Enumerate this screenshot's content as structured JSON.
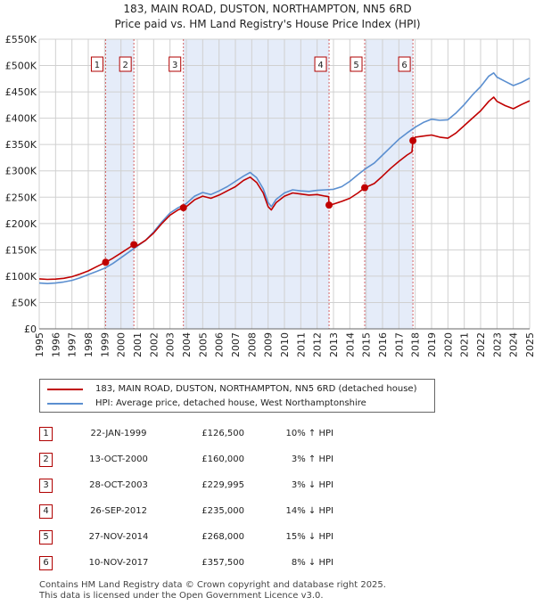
{
  "title_line1": "183, MAIN ROAD, DUSTON, NORTHAMPTON, NN5 6RD",
  "title_line2": "Price paid vs. HM Land Registry's House Price Index (HPI)",
  "colors": {
    "property": "#c00000",
    "hpi": "#5b8fd0",
    "shade": "#dce6f7",
    "marker_box": "#b00000"
  },
  "chart_data": {
    "type": "line",
    "title": "183, MAIN ROAD, DUSTON, NORTHAMPTON, NN5 6RD",
    "subtitle": "Price paid vs. HM Land Registry's House Price Index (HPI)",
    "xlim": [
      1995,
      2025
    ],
    "ylim": [
      0,
      550000
    ],
    "x_ticks": [
      "1995",
      "1996",
      "1997",
      "1998",
      "1999",
      "2000",
      "2001",
      "2002",
      "2003",
      "2004",
      "2005",
      "2006",
      "2007",
      "2008",
      "2009",
      "2010",
      "2011",
      "2012",
      "2013",
      "2014",
      "2015",
      "2016",
      "2017",
      "2018",
      "2019",
      "2020",
      "2021",
      "2022",
      "2023",
      "2024",
      "2025"
    ],
    "y_ticks": [
      {
        "value": 0,
        "label": "£0"
      },
      {
        "value": 50000,
        "label": "£50K"
      },
      {
        "value": 100000,
        "label": "£100K"
      },
      {
        "value": 150000,
        "label": "£150K"
      },
      {
        "value": 200000,
        "label": "£200K"
      },
      {
        "value": 250000,
        "label": "£250K"
      },
      {
        "value": 300000,
        "label": "£300K"
      },
      {
        "value": 350000,
        "label": "£350K"
      },
      {
        "value": 400000,
        "label": "£400K"
      },
      {
        "value": 450000,
        "label": "£450K"
      },
      {
        "value": 500000,
        "label": "£500K"
      },
      {
        "value": 550000,
        "label": "£550K"
      }
    ],
    "grid": true,
    "shaded_periods": [
      [
        1999.06,
        2000.79
      ],
      [
        2003.82,
        2012.73
      ],
      [
        2014.91,
        2017.86
      ]
    ],
    "sales": [
      {
        "n": "1",
        "x": 1999.06,
        "y": 126500
      },
      {
        "n": "2",
        "x": 2000.79,
        "y": 160000
      },
      {
        "n": "3",
        "x": 2003.82,
        "y": 229995
      },
      {
        "n": "4",
        "x": 2012.73,
        "y": 235000
      },
      {
        "n": "5",
        "x": 2014.91,
        "y": 268000
      },
      {
        "n": "6",
        "x": 2017.86,
        "y": 357500
      }
    ],
    "series": [
      {
        "name": "183, MAIN ROAD, DUSTON, NORTHAMPTON, NN5 6RD (detached house)",
        "points": [
          [
            1995,
            95000
          ],
          [
            1995.5,
            94000
          ],
          [
            1996,
            94500
          ],
          [
            1996.5,
            96000
          ],
          [
            1997,
            99000
          ],
          [
            1997.5,
            104000
          ],
          [
            1998,
            110000
          ],
          [
            1998.5,
            118000
          ],
          [
            1999.06,
            126500
          ],
          [
            1999.5,
            134000
          ],
          [
            2000,
            144000
          ],
          [
            2000.5,
            154000
          ],
          [
            2000.79,
            160000
          ],
          [
            2001,
            158000
          ],
          [
            2001.5,
            168000
          ],
          [
            2002,
            182000
          ],
          [
            2002.5,
            200000
          ],
          [
            2003,
            216000
          ],
          [
            2003.5,
            226000
          ],
          [
            2003.82,
            229995
          ],
          [
            2004,
            232000
          ],
          [
            2004.5,
            245000
          ],
          [
            2005,
            252000
          ],
          [
            2005.5,
            248000
          ],
          [
            2006,
            254000
          ],
          [
            2006.5,
            262000
          ],
          [
            2007,
            270000
          ],
          [
            2007.5,
            282000
          ],
          [
            2007.9,
            288000
          ],
          [
            2008.3,
            278000
          ],
          [
            2008.7,
            258000
          ],
          [
            2009.0,
            232000
          ],
          [
            2009.2,
            226000
          ],
          [
            2009.5,
            240000
          ],
          [
            2010,
            252000
          ],
          [
            2010.5,
            258000
          ],
          [
            2011,
            256000
          ],
          [
            2011.5,
            254000
          ],
          [
            2012,
            255000
          ],
          [
            2012.5,
            252000
          ],
          [
            2012.7,
            251000
          ],
          [
            2012.73,
            235000
          ],
          [
            2013,
            237000
          ],
          [
            2013.5,
            242000
          ],
          [
            2014,
            248000
          ],
          [
            2014.5,
            258000
          ],
          [
            2014.91,
            268000
          ],
          [
            2015,
            269000
          ],
          [
            2015.5,
            276000
          ],
          [
            2016,
            290000
          ],
          [
            2016.5,
            305000
          ],
          [
            2017,
            318000
          ],
          [
            2017.5,
            330000
          ],
          [
            2017.8,
            336000
          ],
          [
            2017.86,
            357500
          ],
          [
            2018,
            364000
          ],
          [
            2018.5,
            366000
          ],
          [
            2019,
            368000
          ],
          [
            2019.5,
            364000
          ],
          [
            2020,
            362000
          ],
          [
            2020.5,
            372000
          ],
          [
            2021,
            386000
          ],
          [
            2021.5,
            400000
          ],
          [
            2022,
            414000
          ],
          [
            2022.5,
            432000
          ],
          [
            2022.8,
            440000
          ],
          [
            2023,
            432000
          ],
          [
            2023.5,
            424000
          ],
          [
            2024,
            418000
          ],
          [
            2024.5,
            426000
          ],
          [
            2025,
            433000
          ]
        ]
      },
      {
        "name": "HPI: Average price, detached house, West Northamptonshire",
        "points": [
          [
            1995,
            87000
          ],
          [
            1995.5,
            86000
          ],
          [
            1996,
            87000
          ],
          [
            1996.5,
            89000
          ],
          [
            1997,
            92000
          ],
          [
            1997.5,
            97000
          ],
          [
            1998,
            103000
          ],
          [
            1998.5,
            109000
          ],
          [
            1999,
            115000
          ],
          [
            1999.5,
            124000
          ],
          [
            2000,
            135000
          ],
          [
            2000.5,
            146000
          ],
          [
            2001,
            157000
          ],
          [
            2001.5,
            168000
          ],
          [
            2002,
            184000
          ],
          [
            2002.5,
            203000
          ],
          [
            2003,
            220000
          ],
          [
            2003.5,
            230000
          ],
          [
            2004,
            238000
          ],
          [
            2004.5,
            252000
          ],
          [
            2005,
            259000
          ],
          [
            2005.5,
            255000
          ],
          [
            2006,
            262000
          ],
          [
            2006.5,
            270000
          ],
          [
            2007,
            280000
          ],
          [
            2007.5,
            290000
          ],
          [
            2007.9,
            297000
          ],
          [
            2008.3,
            287000
          ],
          [
            2008.7,
            266000
          ],
          [
            2009.0,
            240000
          ],
          [
            2009.2,
            232000
          ],
          [
            2009.5,
            246000
          ],
          [
            2010,
            258000
          ],
          [
            2010.5,
            264000
          ],
          [
            2011,
            262000
          ],
          [
            2011.5,
            261000
          ],
          [
            2012,
            263000
          ],
          [
            2012.5,
            264000
          ],
          [
            2013,
            265000
          ],
          [
            2013.5,
            270000
          ],
          [
            2014,
            280000
          ],
          [
            2014.5,
            293000
          ],
          [
            2015,
            305000
          ],
          [
            2015.5,
            315000
          ],
          [
            2016,
            330000
          ],
          [
            2016.5,
            345000
          ],
          [
            2017,
            360000
          ],
          [
            2017.5,
            372000
          ],
          [
            2018,
            383000
          ],
          [
            2018.5,
            392000
          ],
          [
            2019,
            398000
          ],
          [
            2019.5,
            396000
          ],
          [
            2020,
            397000
          ],
          [
            2020.5,
            410000
          ],
          [
            2021,
            426000
          ],
          [
            2021.5,
            444000
          ],
          [
            2022,
            460000
          ],
          [
            2022.5,
            480000
          ],
          [
            2022.8,
            486000
          ],
          [
            2023,
            478000
          ],
          [
            2023.5,
            470000
          ],
          [
            2024,
            462000
          ],
          [
            2024.5,
            468000
          ],
          [
            2025,
            476000
          ]
        ]
      }
    ]
  },
  "legend": {
    "property_label": "183, MAIN ROAD, DUSTON, NORTHAMPTON, NN5 6RD (detached house)",
    "hpi_label": "HPI: Average price, detached house, West Northamptonshire"
  },
  "sales_table": [
    {
      "n": "1",
      "date": "22-JAN-1999",
      "price": "£126,500",
      "hpi": "10% ↑ HPI"
    },
    {
      "n": "2",
      "date": "13-OCT-2000",
      "price": "£160,000",
      "hpi": "3% ↑ HPI"
    },
    {
      "n": "3",
      "date": "28-OCT-2003",
      "price": "£229,995",
      "hpi": "3% ↓ HPI"
    },
    {
      "n": "4",
      "date": "26-SEP-2012",
      "price": "£235,000",
      "hpi": "14% ↓ HPI"
    },
    {
      "n": "5",
      "date": "27-NOV-2014",
      "price": "£268,000",
      "hpi": "15% ↓ HPI"
    },
    {
      "n": "6",
      "date": "10-NOV-2017",
      "price": "£357,500",
      "hpi": "8% ↓ HPI"
    }
  ],
  "footer": {
    "line1": "Contains HM Land Registry data © Crown copyright and database right 2025.",
    "line2": "This data is licensed under the Open Government Licence v3.0."
  }
}
